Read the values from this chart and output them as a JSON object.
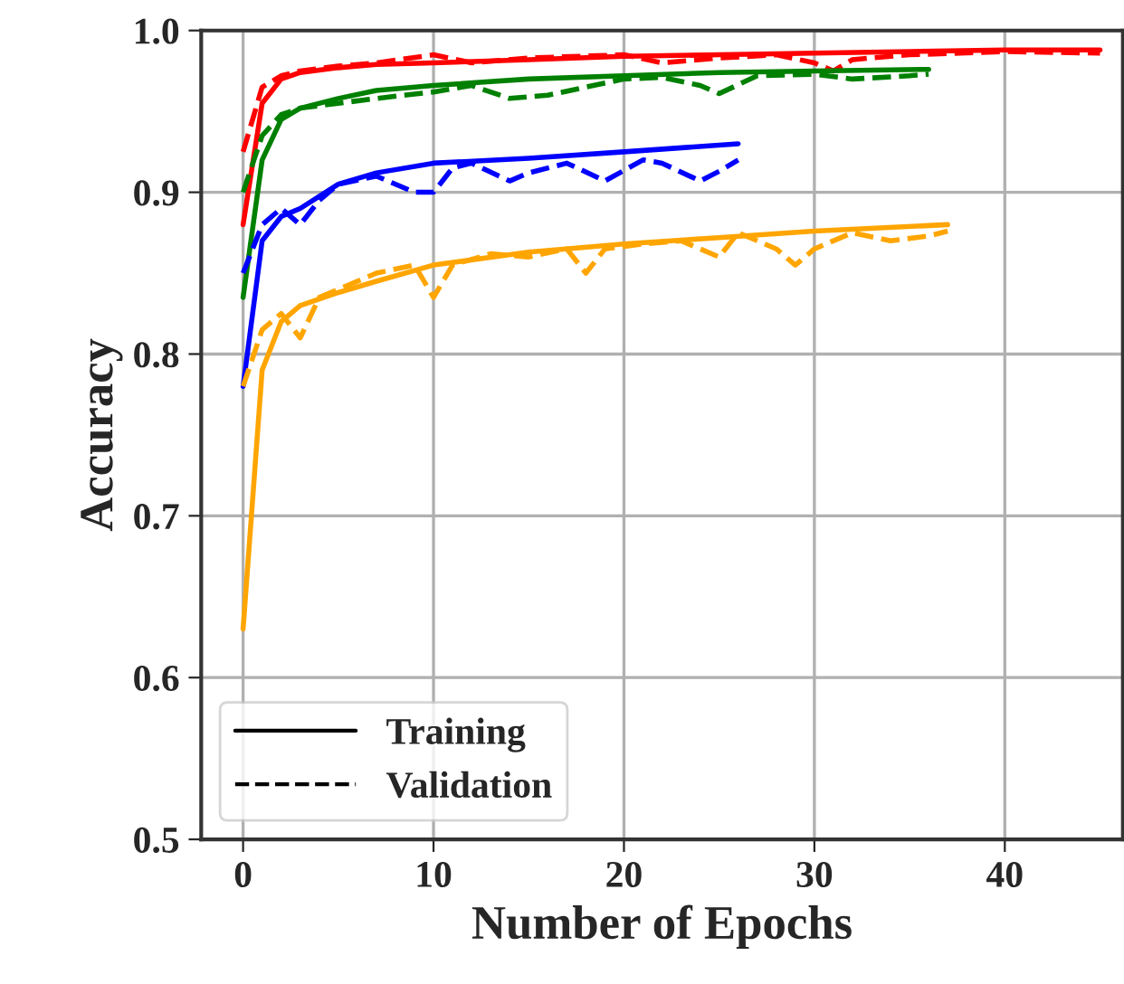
{
  "chart_data": {
    "type": "line",
    "xlabel": "Number of Epochs",
    "ylabel": "Accuracy",
    "xlim": [
      -2.2,
      46.2
    ],
    "ylim": [
      0.5,
      1.0
    ],
    "xticks": [
      0,
      10,
      20,
      30,
      40
    ],
    "yticks": [
      0.5,
      0.6,
      0.7,
      0.8,
      0.9,
      {
        "value": 1,
        "label": "1.0"
      }
    ],
    "grid": true,
    "legend": "bottom left",
    "series": [
      {
        "name": "Training",
        "color": "#000000",
        "line_style": "solid"
      },
      {
        "name": "Validation",
        "color": "#000000",
        "line_style": "dashed"
      },
      {
        "color": "#ff0000",
        "line_style": "solid",
        "x": [
          0,
          1,
          2,
          3,
          5,
          7,
          10,
          15,
          20,
          25,
          30,
          35,
          40,
          45
        ],
        "values": [
          0.88,
          0.955,
          0.97,
          0.974,
          0.977,
          0.979,
          0.98,
          0.982,
          0.984,
          0.985,
          0.986,
          0.987,
          0.988,
          0.988
        ]
      },
      {
        "color": "#ff0000",
        "line_style": "dashed",
        "x": [
          0,
          1,
          2,
          3,
          5,
          7,
          10,
          12,
          15,
          20,
          22,
          25,
          28,
          30,
          31,
          32,
          35,
          40,
          45
        ],
        "values": [
          0.925,
          0.965,
          0.972,
          0.975,
          0.978,
          0.98,
          0.985,
          0.98,
          0.983,
          0.985,
          0.98,
          0.983,
          0.985,
          0.98,
          0.975,
          0.982,
          0.985,
          0.987,
          0.986
        ]
      },
      {
        "color": "#008000",
        "line_style": "solid",
        "x": [
          0,
          1,
          2,
          3,
          5,
          7,
          10,
          15,
          20,
          25,
          30,
          36
        ],
        "values": [
          0.835,
          0.92,
          0.945,
          0.952,
          0.958,
          0.963,
          0.966,
          0.97,
          0.972,
          0.974,
          0.975,
          0.976
        ]
      },
      {
        "color": "#008000",
        "line_style": "dashed",
        "x": [
          0,
          1,
          2,
          3,
          5,
          7,
          10,
          12,
          14,
          16,
          20,
          22,
          24,
          25,
          27,
          30,
          32,
          35,
          36
        ],
        "values": [
          0.9,
          0.935,
          0.948,
          0.952,
          0.955,
          0.958,
          0.962,
          0.966,
          0.958,
          0.96,
          0.97,
          0.971,
          0.966,
          0.961,
          0.972,
          0.973,
          0.97,
          0.972,
          0.973
        ]
      },
      {
        "color": "#0000ff",
        "line_style": "solid",
        "x": [
          0,
          1,
          2,
          3,
          5,
          7,
          10,
          15,
          20,
          26
        ],
        "values": [
          0.78,
          0.87,
          0.885,
          0.89,
          0.905,
          0.912,
          0.918,
          0.921,
          0.925,
          0.93
        ]
      },
      {
        "color": "#0000ff",
        "line_style": "dashed",
        "x": [
          0,
          1,
          2,
          3,
          4,
          5,
          7,
          9,
          10,
          11,
          12,
          14,
          15,
          17,
          19,
          21,
          22,
          24,
          25,
          26
        ],
        "values": [
          0.85,
          0.88,
          0.89,
          0.88,
          0.895,
          0.905,
          0.91,
          0.9,
          0.9,
          0.915,
          0.918,
          0.907,
          0.912,
          0.918,
          0.907,
          0.92,
          0.918,
          0.907,
          0.913,
          0.92
        ]
      },
      {
        "color": "#ffa500",
        "line_style": "solid",
        "x": [
          0,
          1,
          2,
          3,
          5,
          7,
          10,
          15,
          20,
          25,
          30,
          37
        ],
        "values": [
          0.63,
          0.79,
          0.82,
          0.83,
          0.838,
          0.845,
          0.855,
          0.863,
          0.868,
          0.872,
          0.876,
          0.88
        ]
      },
      {
        "color": "#ffa500",
        "line_style": "dashed",
        "x": [
          0,
          1,
          2,
          3,
          4,
          5,
          7,
          9,
          10,
          11,
          13,
          15,
          17,
          18,
          19,
          21,
          23,
          25,
          26,
          28,
          29,
          30,
          32,
          34,
          36,
          37
        ],
        "values": [
          0.78,
          0.815,
          0.825,
          0.81,
          0.835,
          0.84,
          0.85,
          0.855,
          0.835,
          0.855,
          0.862,
          0.86,
          0.865,
          0.85,
          0.865,
          0.868,
          0.87,
          0.86,
          0.875,
          0.865,
          0.855,
          0.865,
          0.875,
          0.87,
          0.873,
          0.876
        ]
      }
    ]
  }
}
